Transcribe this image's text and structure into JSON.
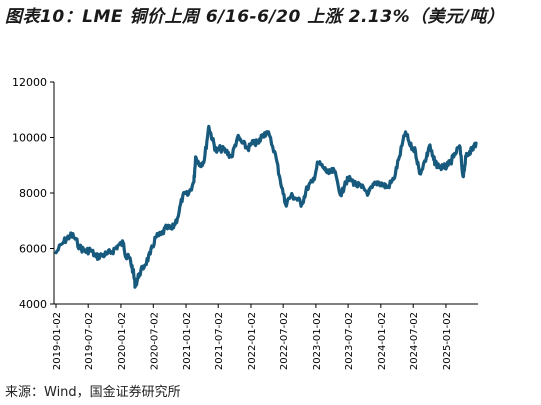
{
  "title": "图表10：LME 铜价上周 6/16-6/20 上涨 2.13%（美元/吨）",
  "source": "来源：Wind，国金证券研究所",
  "colors": {
    "series": "#185a7d"
  },
  "chart_data": {
    "type": "line",
    "ylim": [
      4000,
      12000
    ],
    "yticks": [
      "4000",
      "6000",
      "8000",
      "10000",
      "12000"
    ],
    "xticks": [
      "2019-01-02",
      "2019-07-02",
      "2020-01-02",
      "2020-07-02",
      "2021-01-02",
      "2021-07-02",
      "2022-01-02",
      "2022-07-02",
      "2023-01-02",
      "2023-07-02",
      "2024-01-02",
      "2024-07-02",
      "2025-01-02"
    ],
    "grid": false,
    "series": [
      {
        "x": [
          "2019-01-02",
          "2019-02-15",
          "2019-03-20",
          "2019-04-10",
          "2019-05-15",
          "2019-06-15",
          "2019-07-15",
          "2019-08-15",
          "2019-09-15",
          "2019-10-15",
          "2019-11-15",
          "2019-12-15",
          "2020-01-15",
          "2020-01-31",
          "2020-02-20",
          "2020-03-10",
          "2020-03-23",
          "2020-04-15",
          "2020-05-15",
          "2020-06-15",
          "2020-07-15",
          "2020-08-15",
          "2020-09-15",
          "2020-10-15",
          "2020-11-15",
          "2020-12-15",
          "2021-01-15",
          "2021-02-15",
          "2021-02-25",
          "2021-03-20",
          "2021-04-15",
          "2021-05-10",
          "2021-06-01",
          "2021-06-20",
          "2021-07-15",
          "2021-08-15",
          "2021-09-15",
          "2021-10-18",
          "2021-11-15",
          "2021-12-15",
          "2022-01-15",
          "2022-02-15",
          "2022-03-07",
          "2022-04-05",
          "2022-05-15",
          "2022-06-15",
          "2022-07-15",
          "2022-08-15",
          "2022-09-15",
          "2022-10-15",
          "2022-11-15",
          "2022-12-15",
          "2023-01-15",
          "2023-02-15",
          "2023-03-15",
          "2023-04-15",
          "2023-05-25",
          "2023-06-15",
          "2023-07-15",
          "2023-08-15",
          "2023-09-15",
          "2023-10-25",
          "2023-11-15",
          "2023-12-15",
          "2024-01-15",
          "2024-02-08",
          "2024-03-15",
          "2024-04-15",
          "2024-05-20",
          "2024-06-15",
          "2024-07-15",
          "2024-08-07",
          "2024-09-15",
          "2024-10-01",
          "2024-10-25",
          "2024-11-15",
          "2024-12-15",
          "2025-01-15",
          "2025-02-15",
          "2025-03-20",
          "2025-04-08",
          "2025-04-25",
          "2025-05-15",
          "2025-06-01",
          "2025-06-20"
        ],
        "values": [
          5850,
          6250,
          6450,
          6450,
          6050,
          5900,
          5950,
          5700,
          5750,
          5800,
          5900,
          6100,
          6200,
          5700,
          5650,
          5200,
          4650,
          5100,
          5400,
          5800,
          6400,
          6500,
          6750,
          6700,
          7100,
          7900,
          7950,
          8400,
          9300,
          9000,
          9200,
          10400,
          9900,
          9500,
          9600,
          9500,
          9300,
          10000,
          9800,
          9600,
          9800,
          9800,
          10100,
          10200,
          9500,
          8500,
          7600,
          7900,
          7800,
          7600,
          8200,
          8400,
          9100,
          8900,
          8700,
          8800,
          7900,
          8400,
          8500,
          8300,
          8200,
          8000,
          8200,
          8400,
          8300,
          8200,
          8500,
          9300,
          10200,
          9700,
          9500,
          8700,
          9300,
          9700,
          9200,
          9000,
          8900,
          9000,
          9300,
          9700,
          8600,
          9300,
          9500,
          9600,
          9800
        ]
      }
    ]
  }
}
